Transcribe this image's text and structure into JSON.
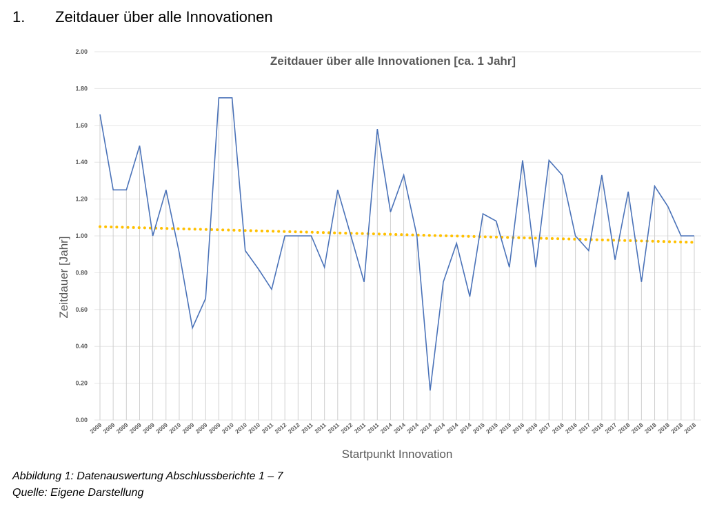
{
  "heading": {
    "number": "1.",
    "text": "Zeitdauer über alle Innovationen"
  },
  "captions": {
    "figure": "Abbildung 1: Datenauswertung Abschlussberichte 1 – 7",
    "source": "Quelle: Eigene Darstellung"
  },
  "chart_data": {
    "type": "line",
    "title": "Zeitdauer über alle Innovationen [ca. 1 Jahr]",
    "xlabel": "Startpunkt Innovation",
    "ylabel": "Zeitdauer [Jahr]",
    "ylim": [
      0,
      2
    ],
    "yticks": [
      "0.00",
      "0.20",
      "0.40",
      "0.60",
      "0.80",
      "1.00",
      "1.20",
      "1.40",
      "1.60",
      "1.80",
      "2.00"
    ],
    "grid": true,
    "categories": [
      "2009",
      "2009",
      "2009",
      "2009",
      "2009",
      "2009",
      "2010",
      "2009",
      "2009",
      "2009",
      "2010",
      "2010",
      "2010",
      "2011",
      "2012",
      "2012",
      "2011",
      "2011",
      "2011",
      "2012",
      "2011",
      "2011",
      "2014",
      "2014",
      "2014",
      "2014",
      "2014",
      "2014",
      "2014",
      "2015",
      "2015",
      "2015",
      "2016",
      "2016",
      "2017",
      "2016",
      "2016",
      "2017",
      "2016",
      "2017",
      "2018",
      "2018",
      "2018",
      "2018",
      "2018",
      "2018"
    ],
    "series": [
      {
        "color": "#4a72b8",
        "values": [
          1.66,
          1.25,
          1.25,
          1.49,
          1.0,
          1.25,
          0.91,
          0.5,
          0.66,
          1.75,
          1.75,
          0.92,
          0.82,
          0.71,
          1.0,
          1.0,
          1.0,
          0.83,
          1.25,
          1.0,
          0.75,
          1.58,
          1.13,
          1.33,
          1.0,
          0.16,
          0.75,
          0.96,
          0.67,
          1.12,
          1.08,
          0.83,
          1.41,
          0.83,
          1.41,
          1.33,
          1.0,
          0.92,
          1.33,
          0.87,
          1.24,
          0.75,
          1.27,
          1.16,
          1.0,
          1.0
        ]
      }
    ],
    "trendline": {
      "color": "#ffc000",
      "style": "dotted",
      "start": 1.05,
      "end": 0.965
    }
  }
}
